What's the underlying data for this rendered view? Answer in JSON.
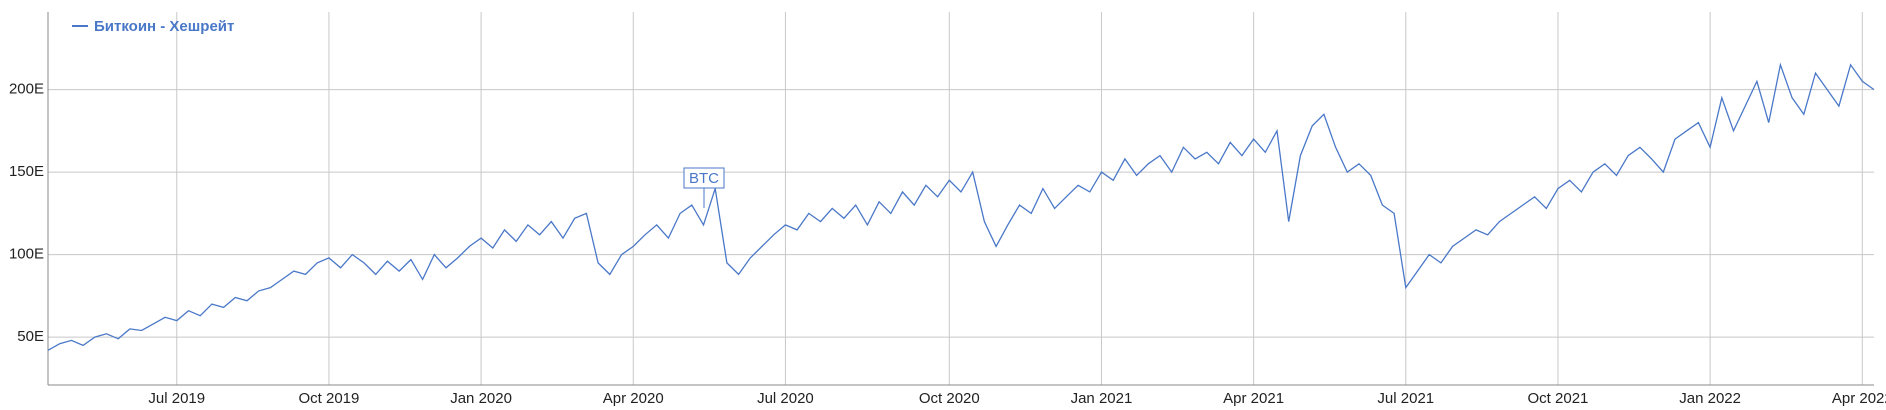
{
  "chart_data": {
    "type": "line",
    "categories": [
      null,
      null,
      null,
      null,
      null,
      null,
      null,
      null,
      null,
      null,
      null,
      "Jul 2019",
      null,
      null,
      null,
      null,
      null,
      null,
      null,
      null,
      null,
      null,
      null,
      null,
      "Oct 2019",
      null,
      null,
      null,
      null,
      null,
      null,
      null,
      null,
      null,
      null,
      null,
      null,
      "Jan 2020",
      null,
      null,
      null,
      null,
      null,
      null,
      null,
      null,
      null,
      null,
      null,
      null,
      "Apr 2020",
      null,
      null,
      null,
      null,
      null,
      null,
      null,
      null,
      null,
      null,
      null,
      null,
      "Jul 2020",
      null,
      null,
      null,
      null,
      null,
      null,
      null,
      null,
      null,
      null,
      null,
      null,
      null,
      "Oct 2020",
      null,
      null,
      null,
      null,
      null,
      null,
      null,
      null,
      null,
      null,
      null,
      null,
      "Jan 2021",
      null,
      null,
      null,
      null,
      null,
      null,
      null,
      null,
      null,
      null,
      null,
      null,
      "Apr 2021",
      null,
      null,
      null,
      null,
      null,
      null,
      null,
      null,
      null,
      null,
      null,
      null,
      "Jul 2021",
      null,
      null,
      null,
      null,
      null,
      null,
      null,
      null,
      null,
      null,
      null,
      null,
      "Oct 2021",
      null,
      null,
      null,
      null,
      null,
      null,
      null,
      null,
      null,
      null,
      null,
      null,
      "Jan 2022",
      null,
      null,
      null,
      null,
      null,
      null,
      null,
      null,
      null,
      null,
      null,
      null,
      "Apr 2022",
      null
    ],
    "series": [
      {
        "name": "Биткоин - Хешрейт",
        "color": "#4a78c8",
        "values": [
          42,
          46,
          48,
          45,
          50,
          52,
          49,
          55,
          54,
          58,
          62,
          60,
          66,
          63,
          70,
          68,
          74,
          72,
          78,
          80,
          85,
          90,
          88,
          95,
          98,
          92,
          100,
          95,
          88,
          96,
          90,
          97,
          85,
          100,
          92,
          98,
          105,
          110,
          104,
          115,
          108,
          118,
          112,
          120,
          110,
          122,
          125,
          95,
          88,
          100,
          105,
          112,
          118,
          110,
          125,
          130,
          118,
          140,
          95,
          88,
          98,
          105,
          112,
          118,
          115,
          125,
          120,
          128,
          122,
          130,
          118,
          132,
          125,
          138,
          130,
          142,
          135,
          145,
          138,
          150,
          120,
          105,
          118,
          130,
          125,
          140,
          128,
          135,
          142,
          138,
          150,
          145,
          158,
          148,
          155,
          160,
          150,
          165,
          158,
          162,
          155,
          168,
          160,
          170,
          162,
          175,
          120,
          160,
          178,
          185,
          165,
          150,
          155,
          148,
          130,
          125,
          80,
          90,
          100,
          95,
          105,
          110,
          115,
          112,
          120,
          125,
          130,
          135,
          128,
          140,
          145,
          138,
          150,
          155,
          148,
          160,
          165,
          158,
          150,
          170,
          175,
          180,
          165,
          195,
          175,
          190,
          205,
          180,
          215,
          195,
          185,
          210,
          200,
          190,
          215,
          205,
          200
        ]
      }
    ],
    "annotation": "BTC",
    "ylim": [
      21,
      247
    ],
    "yticks": [
      {
        "value": 50,
        "label": "50E"
      },
      {
        "value": 100,
        "label": "100E"
      },
      {
        "value": 150,
        "label": "150E"
      },
      {
        "value": 200,
        "label": "200E"
      }
    ],
    "grid": true
  }
}
